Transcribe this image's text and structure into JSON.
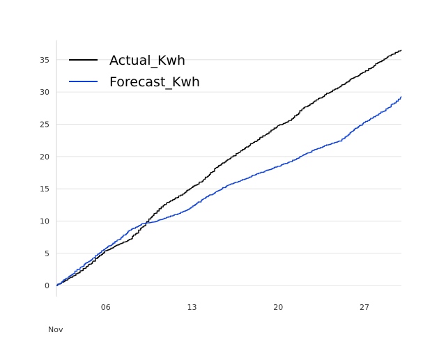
{
  "chart_data": {
    "type": "line",
    "title": "",
    "xlabel": "",
    "ylabel": "",
    "x_range": [
      "2023-11-02",
      "2023-11-30"
    ],
    "ylim": [
      -1.7,
      38
    ],
    "grid": {
      "horizontal": true,
      "vertical": false
    },
    "legend": {
      "position": "top-left"
    },
    "x_ticks": [
      {
        "date": "2023-11-06",
        "label": "06"
      },
      {
        "date": "2023-11-13",
        "label": "13"
      },
      {
        "date": "2023-11-20",
        "label": "20"
      },
      {
        "date": "2023-11-27",
        "label": "27"
      }
    ],
    "x_month_label": "Nov",
    "y_ticks": [
      0,
      5,
      10,
      15,
      20,
      25,
      30,
      35
    ],
    "series": [
      {
        "name": "Actual_Kwh",
        "color": "#000000",
        "x": [
          "2023-11-02",
          "2023-11-03",
          "2023-11-04",
          "2023-11-05",
          "2023-11-06",
          "2023-11-07",
          "2023-11-08",
          "2023-11-09",
          "2023-11-10",
          "2023-11-11",
          "2023-11-12",
          "2023-11-13",
          "2023-11-14",
          "2023-11-15",
          "2023-11-16",
          "2023-11-17",
          "2023-11-18",
          "2023-11-19",
          "2023-11-20",
          "2023-11-21",
          "2023-11-22",
          "2023-11-23",
          "2023-11-24",
          "2023-11-25",
          "2023-11-26",
          "2023-11-27",
          "2023-11-28",
          "2023-11-29",
          "2023-11-30"
        ],
        "values": [
          0.0,
          1.1,
          2.3,
          3.8,
          5.4,
          6.3,
          7.2,
          9.1,
          11.2,
          12.9,
          13.9,
          15.2,
          16.5,
          18.3,
          19.6,
          20.9,
          22.2,
          23.4,
          24.8,
          25.6,
          27.4,
          28.6,
          29.8,
          30.8,
          32.1,
          33.1,
          34.4,
          35.6,
          36.5
        ]
      },
      {
        "name": "Forecast_Kwh",
        "color": "#0b3fd9",
        "x": [
          "2023-11-02",
          "2023-11-03",
          "2023-11-04",
          "2023-11-05",
          "2023-11-06",
          "2023-11-07",
          "2023-11-08",
          "2023-11-09",
          "2023-11-10",
          "2023-11-11",
          "2023-11-12",
          "2023-11-13",
          "2023-11-14",
          "2023-11-15",
          "2023-11-16",
          "2023-11-17",
          "2023-11-18",
          "2023-11-19",
          "2023-11-20",
          "2023-11-21",
          "2023-11-22",
          "2023-11-23",
          "2023-11-24",
          "2023-11-25",
          "2023-11-26",
          "2023-11-27",
          "2023-11-28",
          "2023-11-29",
          "2023-11-30"
        ],
        "values": [
          0.0,
          1.4,
          2.9,
          4.3,
          5.8,
          7.1,
          8.6,
          9.6,
          9.9,
          10.6,
          11.2,
          12.2,
          13.5,
          14.6,
          15.6,
          16.3,
          17.1,
          17.8,
          18.5,
          19.2,
          20.2,
          21.1,
          21.8,
          22.4,
          23.9,
          25.3,
          26.4,
          27.6,
          29.3
        ]
      }
    ]
  }
}
